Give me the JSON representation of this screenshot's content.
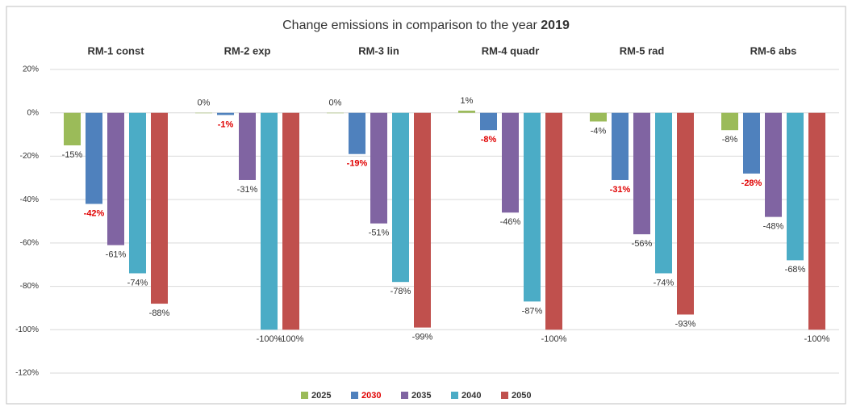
{
  "chart_data": {
    "type": "bar",
    "title": {
      "text": "Change emissions in comparison to the year",
      "emphasis": "2019"
    },
    "categories": [
      "RM-1 const",
      "RM-2 exp",
      "RM-3 lin",
      "RM-4 quadr",
      "RM-5 rad",
      "RM-6 abs"
    ],
    "series": [
      {
        "name": "2025",
        "color": "#9bbb59",
        "values": [
          -15,
          0,
          0,
          1,
          -4,
          -8
        ],
        "value_labels": [
          "-15%",
          "0%",
          "0%",
          "1%",
          "-4%",
          "-8%"
        ]
      },
      {
        "name": "2030",
        "color": "#4f81bd",
        "highlight": "#e00000",
        "values": [
          -42,
          -1,
          -19,
          -8,
          -31,
          -28
        ],
        "value_labels": [
          "-42%",
          "-1%",
          "-19%",
          "-8%",
          "-31%",
          "-28%"
        ]
      },
      {
        "name": "2035",
        "color": "#8064a2",
        "values": [
          -61,
          -31,
          -51,
          -46,
          -56,
          -48
        ],
        "value_labels": [
          "-61%",
          "-31%",
          "-51%",
          "-46%",
          "-56%",
          "-48%"
        ]
      },
      {
        "name": "2040",
        "color": "#4bacc6",
        "values": [
          -74,
          -100,
          -78,
          -87,
          -74,
          -68
        ],
        "value_labels": [
          "-74%",
          "-100%",
          "-78%",
          "-87%",
          "-74%",
          "-68%"
        ]
      },
      {
        "name": "2050",
        "color": "#c0504d",
        "values": [
          -88,
          -100,
          -99,
          -100,
          -93,
          -100
        ],
        "value_labels": [
          "-88%",
          "-100%",
          "-99%",
          "-100%",
          "-93%",
          "-100%"
        ]
      }
    ],
    "ylim": [
      -120,
      20
    ],
    "yticks": [
      {
        "value": 20,
        "label": "20%"
      },
      {
        "value": 0,
        "label": "0%"
      },
      {
        "value": -20,
        "label": "-20%"
      },
      {
        "value": -40,
        "label": "-40%"
      },
      {
        "value": -60,
        "label": "-60%"
      },
      {
        "value": -80,
        "label": "-80%"
      },
      {
        "value": -100,
        "label": "-100%"
      },
      {
        "value": -120,
        "label": "-120%"
      }
    ],
    "grid": true,
    "legend": "bottom"
  }
}
